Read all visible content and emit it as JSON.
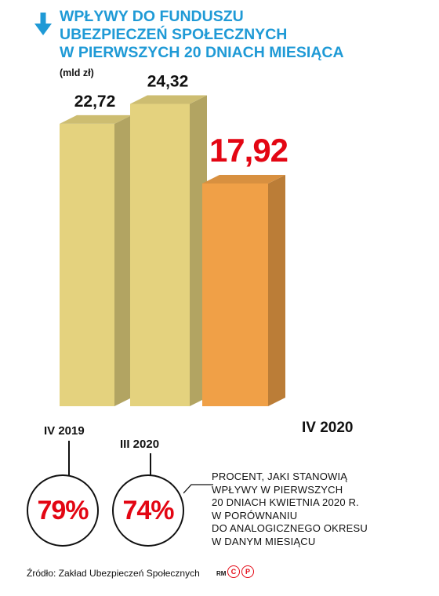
{
  "header": {
    "title_lines": [
      "WPŁYWY DO FUNDUSZU",
      "UBEZPIECZEŃ SPOŁECZNYCH",
      "W PIERWSZYCH 20 DNIACH MIESIĄCA"
    ],
    "unit": "(mld zł)"
  },
  "chart_data": {
    "type": "bar",
    "categories": [
      "IV 2019",
      "III 2020",
      "IV 2020"
    ],
    "values": [
      22.72,
      24.32,
      17.92
    ],
    "value_labels": [
      "22,72",
      "24,32",
      "17,92"
    ],
    "ylabel": "(mld zł)",
    "bar_colors": [
      "#e4d27e",
      "#e4d27e",
      "#f0a047"
    ],
    "highlight_color": "#e30613",
    "percent_badges": [
      {
        "category": "IV 2019",
        "value": 79,
        "label": "79%"
      },
      {
        "category": "III 2020",
        "value": 74,
        "label": "74%"
      }
    ]
  },
  "note_lines": [
    "Procent, jaki stanowią",
    "wpływy w pierwszych",
    "20 dniach kwietnia 2020 r.",
    "w porównaniu",
    "do analogicznego okresu",
    "w danym miesiącu"
  ],
  "footer": {
    "source": "Źródło: Zakład Ubezpieczeń Społecznych",
    "credit": "RM",
    "logo_letters": [
      "C",
      "P"
    ]
  },
  "colors": {
    "title": "#1f9ad6",
    "accent_red": "#e30613"
  }
}
